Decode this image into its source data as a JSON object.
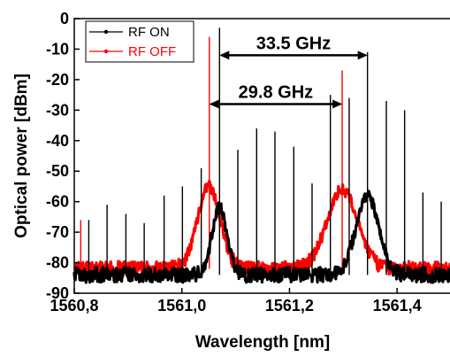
{
  "chart_data": {
    "type": "line",
    "title": "",
    "xlabel": "Wavelength [nm]",
    "ylabel": "Optical power [dBm]",
    "xlim": [
      1560.8,
      1561.5
    ],
    "ylim": [
      -90,
      0
    ],
    "xticks": [
      "1560,8",
      "1561,0",
      "1561,2",
      "1561,4"
    ],
    "xtick_values": [
      1560.8,
      1561.0,
      1561.2,
      1561.4
    ],
    "yticks": [
      0,
      -10,
      -20,
      -30,
      -40,
      -50,
      -60,
      -70,
      -80,
      -90
    ],
    "grid": false,
    "legend_position": "top-left",
    "series": [
      {
        "name": "RF ON",
        "color": "#000000",
        "floor": -84,
        "peaks": [
          {
            "x": 1560.827,
            "y": -66
          },
          {
            "x": 1560.861,
            "y": -61
          },
          {
            "x": 1560.896,
            "y": -64
          },
          {
            "x": 1560.93,
            "y": -67
          },
          {
            "x": 1560.967,
            "y": -58
          },
          {
            "x": 1561.001,
            "y": -55
          },
          {
            "x": 1561.036,
            "y": -49
          },
          {
            "x": 1561.07,
            "y": -3
          },
          {
            "x": 1561.104,
            "y": -43
          },
          {
            "x": 1561.139,
            "y": -36
          },
          {
            "x": 1561.173,
            "y": -37
          },
          {
            "x": 1561.208,
            "y": -42
          },
          {
            "x": 1561.242,
            "y": -54
          },
          {
            "x": 1561.276,
            "y": -25
          },
          {
            "x": 1561.311,
            "y": -26
          },
          {
            "x": 1561.345,
            "y": -11
          },
          {
            "x": 1561.38,
            "y": -27
          },
          {
            "x": 1561.414,
            "y": -30
          },
          {
            "x": 1561.448,
            "y": -57
          },
          {
            "x": 1561.482,
            "y": -60
          }
        ],
        "humps": [
          {
            "center": 1561.07,
            "height": -62,
            "width": 0.02
          },
          {
            "center": 1561.345,
            "height": -58,
            "width": 0.03
          }
        ]
      },
      {
        "name": "RF OFF",
        "color": "#ff0000",
        "floor": -82,
        "peaks": [
          {
            "x": 1560.812,
            "y": -66
          },
          {
            "x": 1561.051,
            "y": -6
          },
          {
            "x": 1561.298,
            "y": -17
          }
        ],
        "humps": [
          {
            "center": 1561.05,
            "height": -55,
            "width": 0.03
          },
          {
            "center": 1561.298,
            "height": -56,
            "width": 0.04
          }
        ]
      }
    ],
    "annotations": [
      {
        "text": "33.5 GHz",
        "from": 1561.07,
        "to": 1561.345,
        "y": -12
      },
      {
        "text": "29.8 GHz",
        "from": 1561.051,
        "to": 1561.298,
        "y": -28
      }
    ]
  }
}
